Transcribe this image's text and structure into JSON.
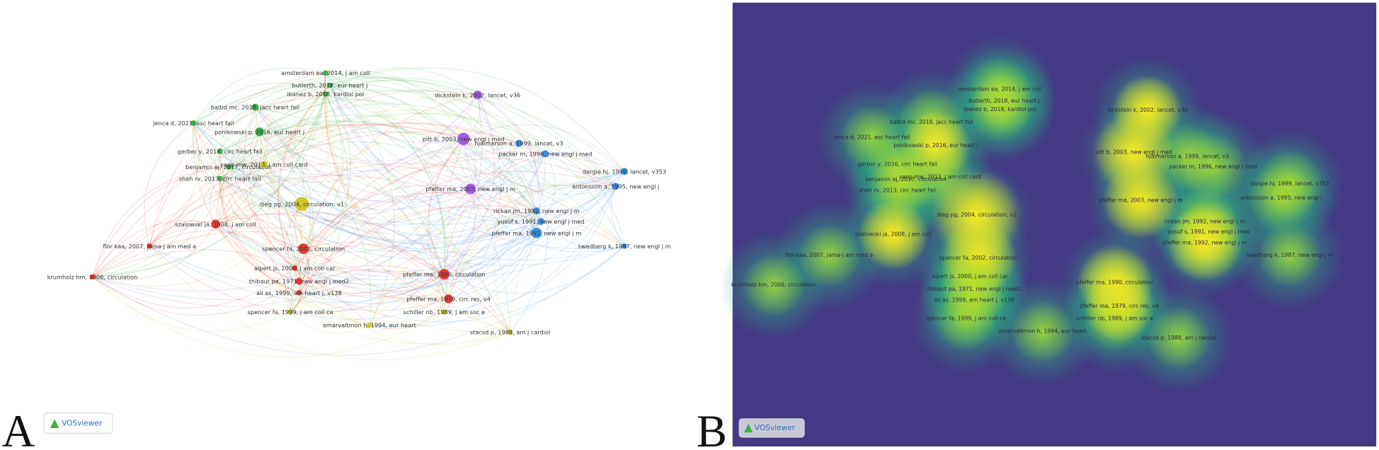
{
  "panels": [
    {
      "letter": "A",
      "logo": "VOSviewer"
    },
    {
      "letter": "B",
      "logo": "VOSviewer"
    }
  ],
  "nodes": [
    {
      "label": "amsterdam ea, 2014, j am coll",
      "color": "#3cb043"
    },
    {
      "label": "butlerth, 2018, eur heart j",
      "color": "#3cb043"
    },
    {
      "label": "ibanez b, 2018, kardiol pol",
      "color": "#3cb043"
    },
    {
      "label": "baltid mc, 2018, jacc heart fail",
      "color": "#3cb043"
    },
    {
      "label": "jenca d, 2021, esc heart fail",
      "color": "#3cb043"
    },
    {
      "label": "ponikowski p, 2016, eur heart j",
      "color": "#3cb043"
    },
    {
      "label": "gerber y, 2016, circ heart fail",
      "color": "#3cb043"
    },
    {
      "label": "benjamin ej, 2017, circulation",
      "color": "#3cb043"
    },
    {
      "label": "shah rv, 2013, circ heart fail",
      "color": "#3cb043"
    },
    {
      "label": "yang mw, 2013, j am coll card",
      "color": "#cfc92a"
    },
    {
      "label": "dickstein k, 2002, lancet, v36",
      "color": "#a45ee0"
    },
    {
      "label": "pitt b, 2003, new engl j med",
      "color": "#a45ee0"
    },
    {
      "label": "hjalmarson a, 1999, lancet, v3",
      "color": "#3d8fe0"
    },
    {
      "label": "packer m, 1996, new engl j med",
      "color": "#3d8fe0"
    },
    {
      "label": "dargie hj, 1999, lancet, v353",
      "color": "#3d8fe0"
    },
    {
      "label": "antonsson a, 1995, new engl j",
      "color": "#3d8fe0"
    },
    {
      "label": "pfeffer ma, 2003, new engl j m",
      "color": "#a45ee0"
    },
    {
      "label": "dieg pg, 2004, circulation, v1",
      "color": "#cfc92a"
    },
    {
      "label": "rickan jm, 1992, new engl j m",
      "color": "#3d8fe0"
    },
    {
      "label": "yusuf s, 1991, new engl j med",
      "color": "#3d8fe0"
    },
    {
      "label": "pfeffer ma, 1992, new engl j m",
      "color": "#3d8fe0"
    },
    {
      "label": "swedberg k, 1987, new engl j m",
      "color": "#3d8fe0"
    },
    {
      "label": "szalowski ja, 2008, j am coll",
      "color": "#e53935"
    },
    {
      "label": "spencer fa, 2002, circulation",
      "color": "#e53935"
    },
    {
      "label": "flor kaa, 2007, jama-j am med a",
      "color": "#e53935"
    },
    {
      "label": "krumholz hm, 2006, circulation",
      "color": "#e53935"
    },
    {
      "label": "alpert js, 2000, j am coll car",
      "color": "#e53935"
    },
    {
      "label": "thibaut pa, 1971, new engl j med2",
      "color": "#e53935"
    },
    {
      "label": "ali as, 1999, am heart j, v138",
      "color": "#e53935"
    },
    {
      "label": "pfeffer ma, 1990, circulation",
      "color": "#e53935"
    },
    {
      "label": "pfeffer ma, 1979, circ res, v4",
      "color": "#e53935"
    },
    {
      "label": "schiller nb, 1989, j am soc e",
      "color": "#cfc92a"
    },
    {
      "label": "spencer fa, 1999, j am coll ca",
      "color": "#cfc92a"
    },
    {
      "label": "amarvaltmon h, 1994, eur heart",
      "color": "#cfc92a"
    },
    {
      "label": "stacsd p, 1988, am j cardiol",
      "color": "#cfc92a"
    }
  ]
}
